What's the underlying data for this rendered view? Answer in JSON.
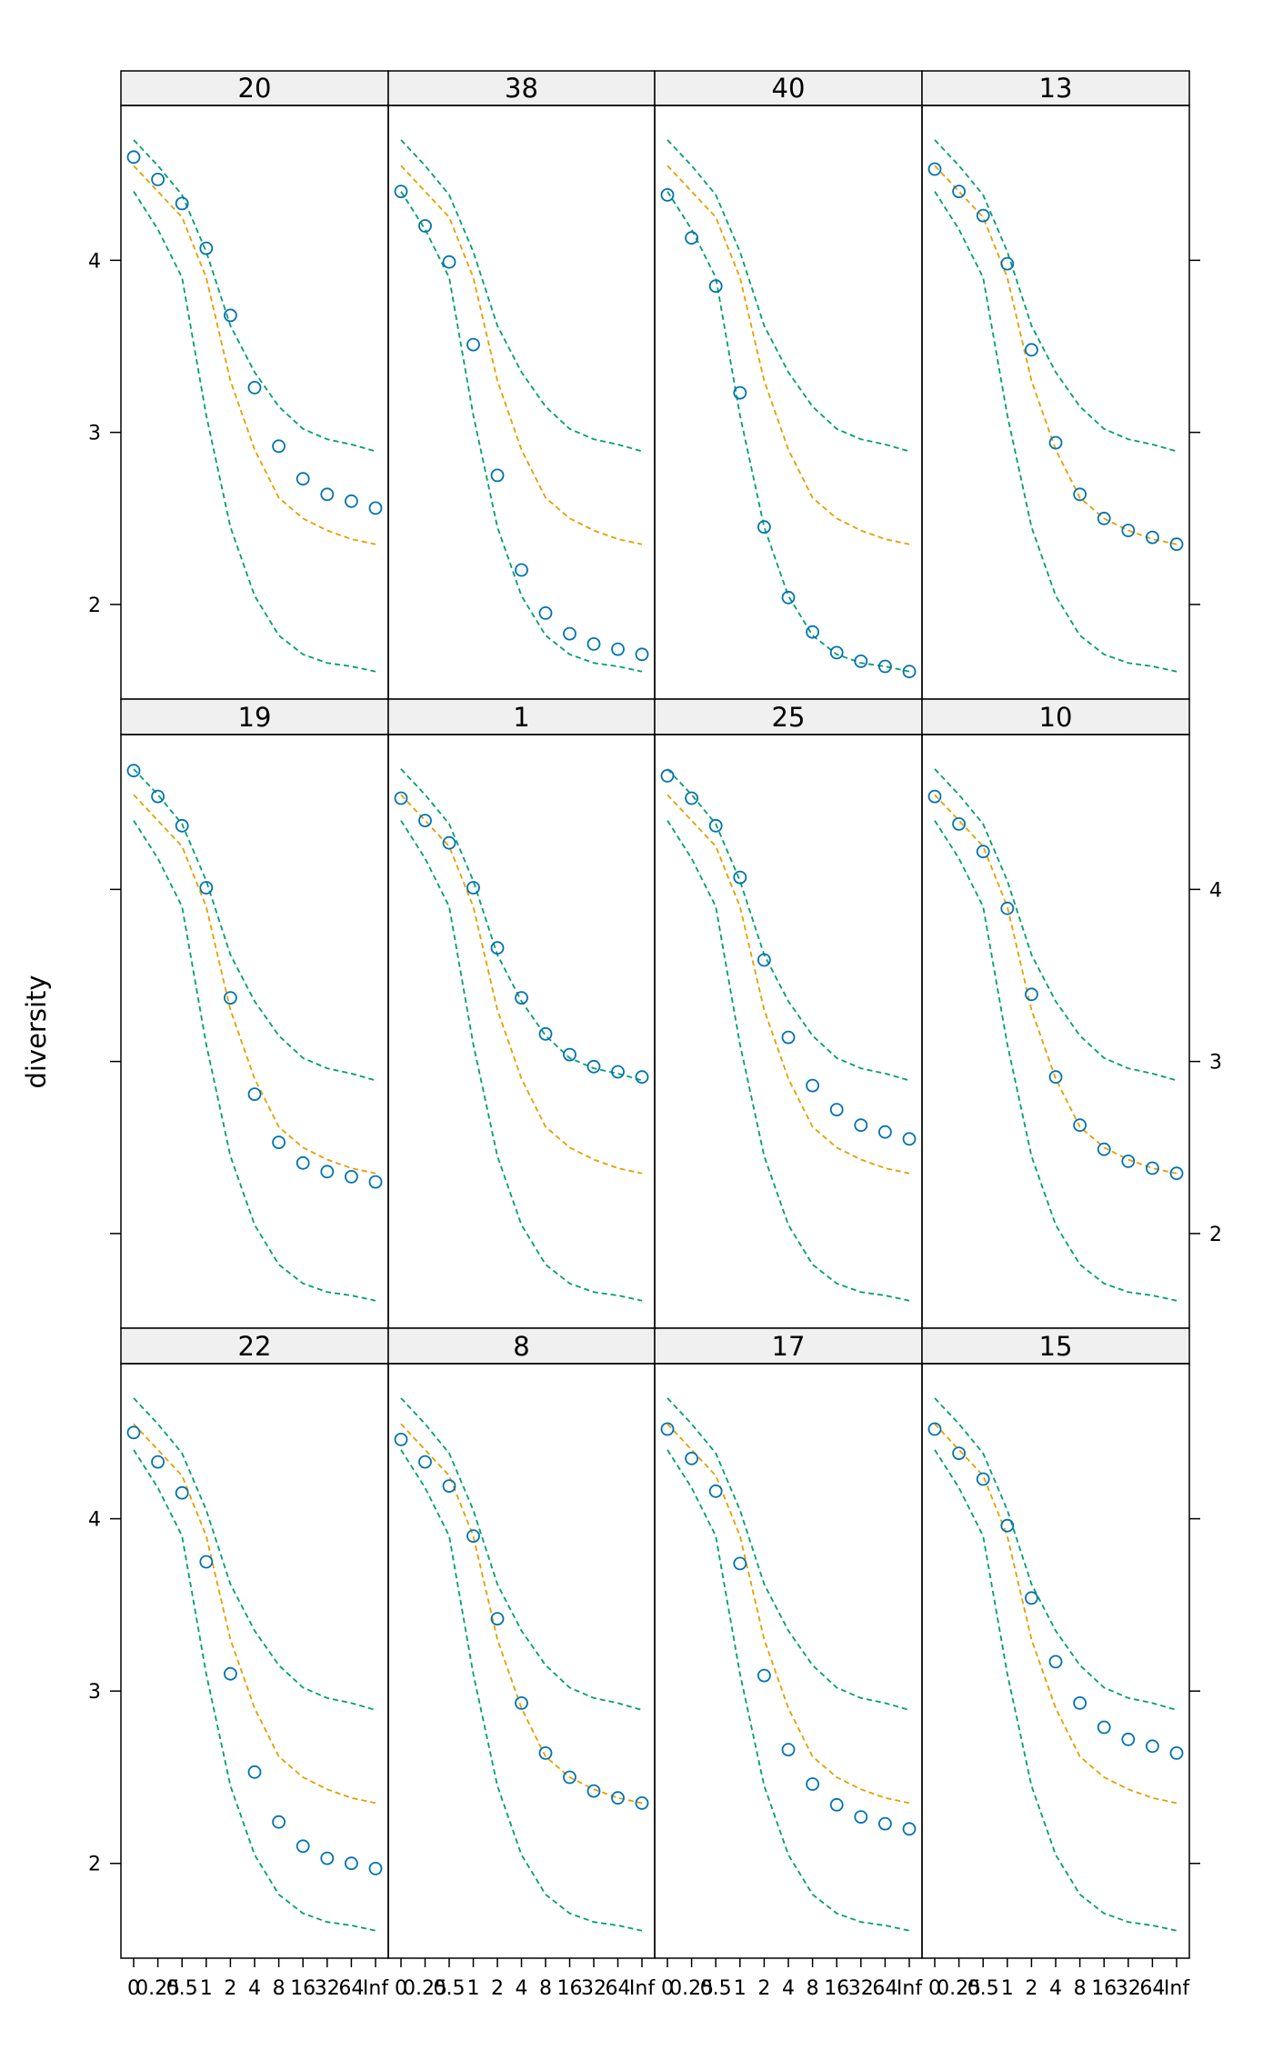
{
  "chart_data": {
    "type": "scatter",
    "layout": {
      "rows": 3,
      "cols": 4
    },
    "ylabel": "diversity",
    "xlabel": "",
    "ylim": [
      1.45,
      4.9
    ],
    "x_tick_labels": [
      "0",
      "0.25",
      "0.5",
      "1",
      "2",
      "4",
      "8",
      "16",
      "32",
      "64",
      "Inf"
    ],
    "y_ticks": [
      2,
      3,
      4
    ],
    "colors": {
      "points": "#0072b2",
      "median": "#e69f00",
      "envelope": "#009e73",
      "strip": "#f0f0f0"
    },
    "reference": {
      "median": [
        4.55,
        4.4,
        4.25,
        3.9,
        3.3,
        2.9,
        2.62,
        2.5,
        2.43,
        2.38,
        2.35
      ],
      "upper": [
        4.7,
        4.55,
        4.38,
        4.05,
        3.62,
        3.35,
        3.15,
        3.02,
        2.96,
        2.93,
        2.89
      ],
      "lower": [
        4.4,
        4.18,
        3.9,
        3.1,
        2.45,
        2.05,
        1.82,
        1.71,
        1.66,
        1.64,
        1.61
      ]
    },
    "panels": [
      {
        "label": "20",
        "values": [
          4.6,
          4.47,
          4.33,
          4.07,
          3.68,
          3.26,
          2.92,
          2.73,
          2.64,
          2.6,
          2.56
        ]
      },
      {
        "label": "38",
        "values": [
          4.4,
          4.2,
          3.99,
          3.51,
          2.75,
          2.2,
          1.95,
          1.83,
          1.77,
          1.74,
          1.71
        ]
      },
      {
        "label": "40",
        "values": [
          4.38,
          4.13,
          3.85,
          3.23,
          2.45,
          2.04,
          1.84,
          1.72,
          1.67,
          1.64,
          1.61
        ]
      },
      {
        "label": "13",
        "values": [
          4.53,
          4.4,
          4.26,
          3.98,
          3.48,
          2.94,
          2.64,
          2.5,
          2.43,
          2.39,
          2.35
        ]
      },
      {
        "label": "19",
        "values": [
          4.69,
          4.54,
          4.37,
          4.01,
          3.37,
          2.81,
          2.53,
          2.41,
          2.36,
          2.33,
          2.3
        ]
      },
      {
        "label": "1",
        "values": [
          4.53,
          4.4,
          4.27,
          4.01,
          3.66,
          3.37,
          3.16,
          3.04,
          2.97,
          2.94,
          2.91
        ]
      },
      {
        "label": "25",
        "values": [
          4.66,
          4.53,
          4.37,
          4.07,
          3.59,
          3.14,
          2.86,
          2.72,
          2.63,
          2.59,
          2.55
        ]
      },
      {
        "label": "10",
        "values": [
          4.54,
          4.38,
          4.22,
          3.89,
          3.39,
          2.91,
          2.63,
          2.49,
          2.42,
          2.38,
          2.35
        ]
      },
      {
        "label": "22",
        "values": [
          4.5,
          4.33,
          4.15,
          3.75,
          3.1,
          2.53,
          2.24,
          2.1,
          2.03,
          2.0,
          1.97
        ]
      },
      {
        "label": "8",
        "values": [
          4.46,
          4.33,
          4.19,
          3.9,
          3.42,
          2.93,
          2.64,
          2.5,
          2.42,
          2.38,
          2.35
        ]
      },
      {
        "label": "17",
        "values": [
          4.52,
          4.35,
          4.16,
          3.74,
          3.09,
          2.66,
          2.46,
          2.34,
          2.27,
          2.23,
          2.2
        ]
      },
      {
        "label": "15",
        "values": [
          4.52,
          4.38,
          4.23,
          3.96,
          3.54,
          3.17,
          2.93,
          2.79,
          2.72,
          2.68,
          2.64
        ]
      }
    ]
  }
}
